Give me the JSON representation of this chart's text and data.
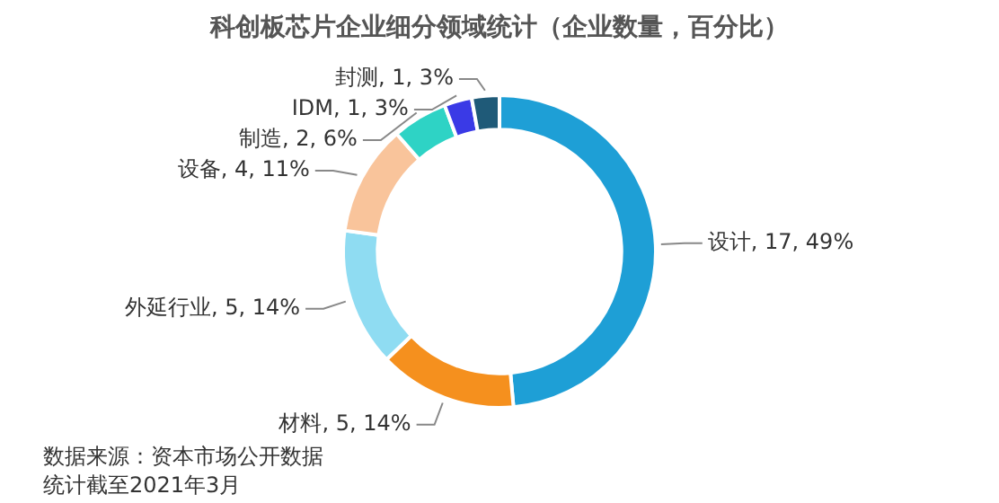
{
  "chart_data": {
    "type": "donut",
    "title": "科创板芯片企业细分领域统计（企业数量，百分比）",
    "categories": [
      "设计",
      "材料",
      "外延行业",
      "设备",
      "制造",
      "IDM",
      "封测"
    ],
    "values": [
      17,
      5,
      5,
      4,
      2,
      1,
      1
    ],
    "value_labels": [
      "17, 49%",
      "5, 14%",
      "5, 14%",
      "4, 11%",
      "2, 6%",
      "1, 3%",
      "1, 3%"
    ],
    "colors": [
      "#1e9fd6",
      "#f5901e",
      "#8fdcf2",
      "#f9c49b",
      "#2ed3c5",
      "#3a3ae6",
      "#1f5a78"
    ],
    "legend": false,
    "annotations": [
      "数据来源：资本市场公开数据",
      "统计截至2021年3月"
    ]
  }
}
